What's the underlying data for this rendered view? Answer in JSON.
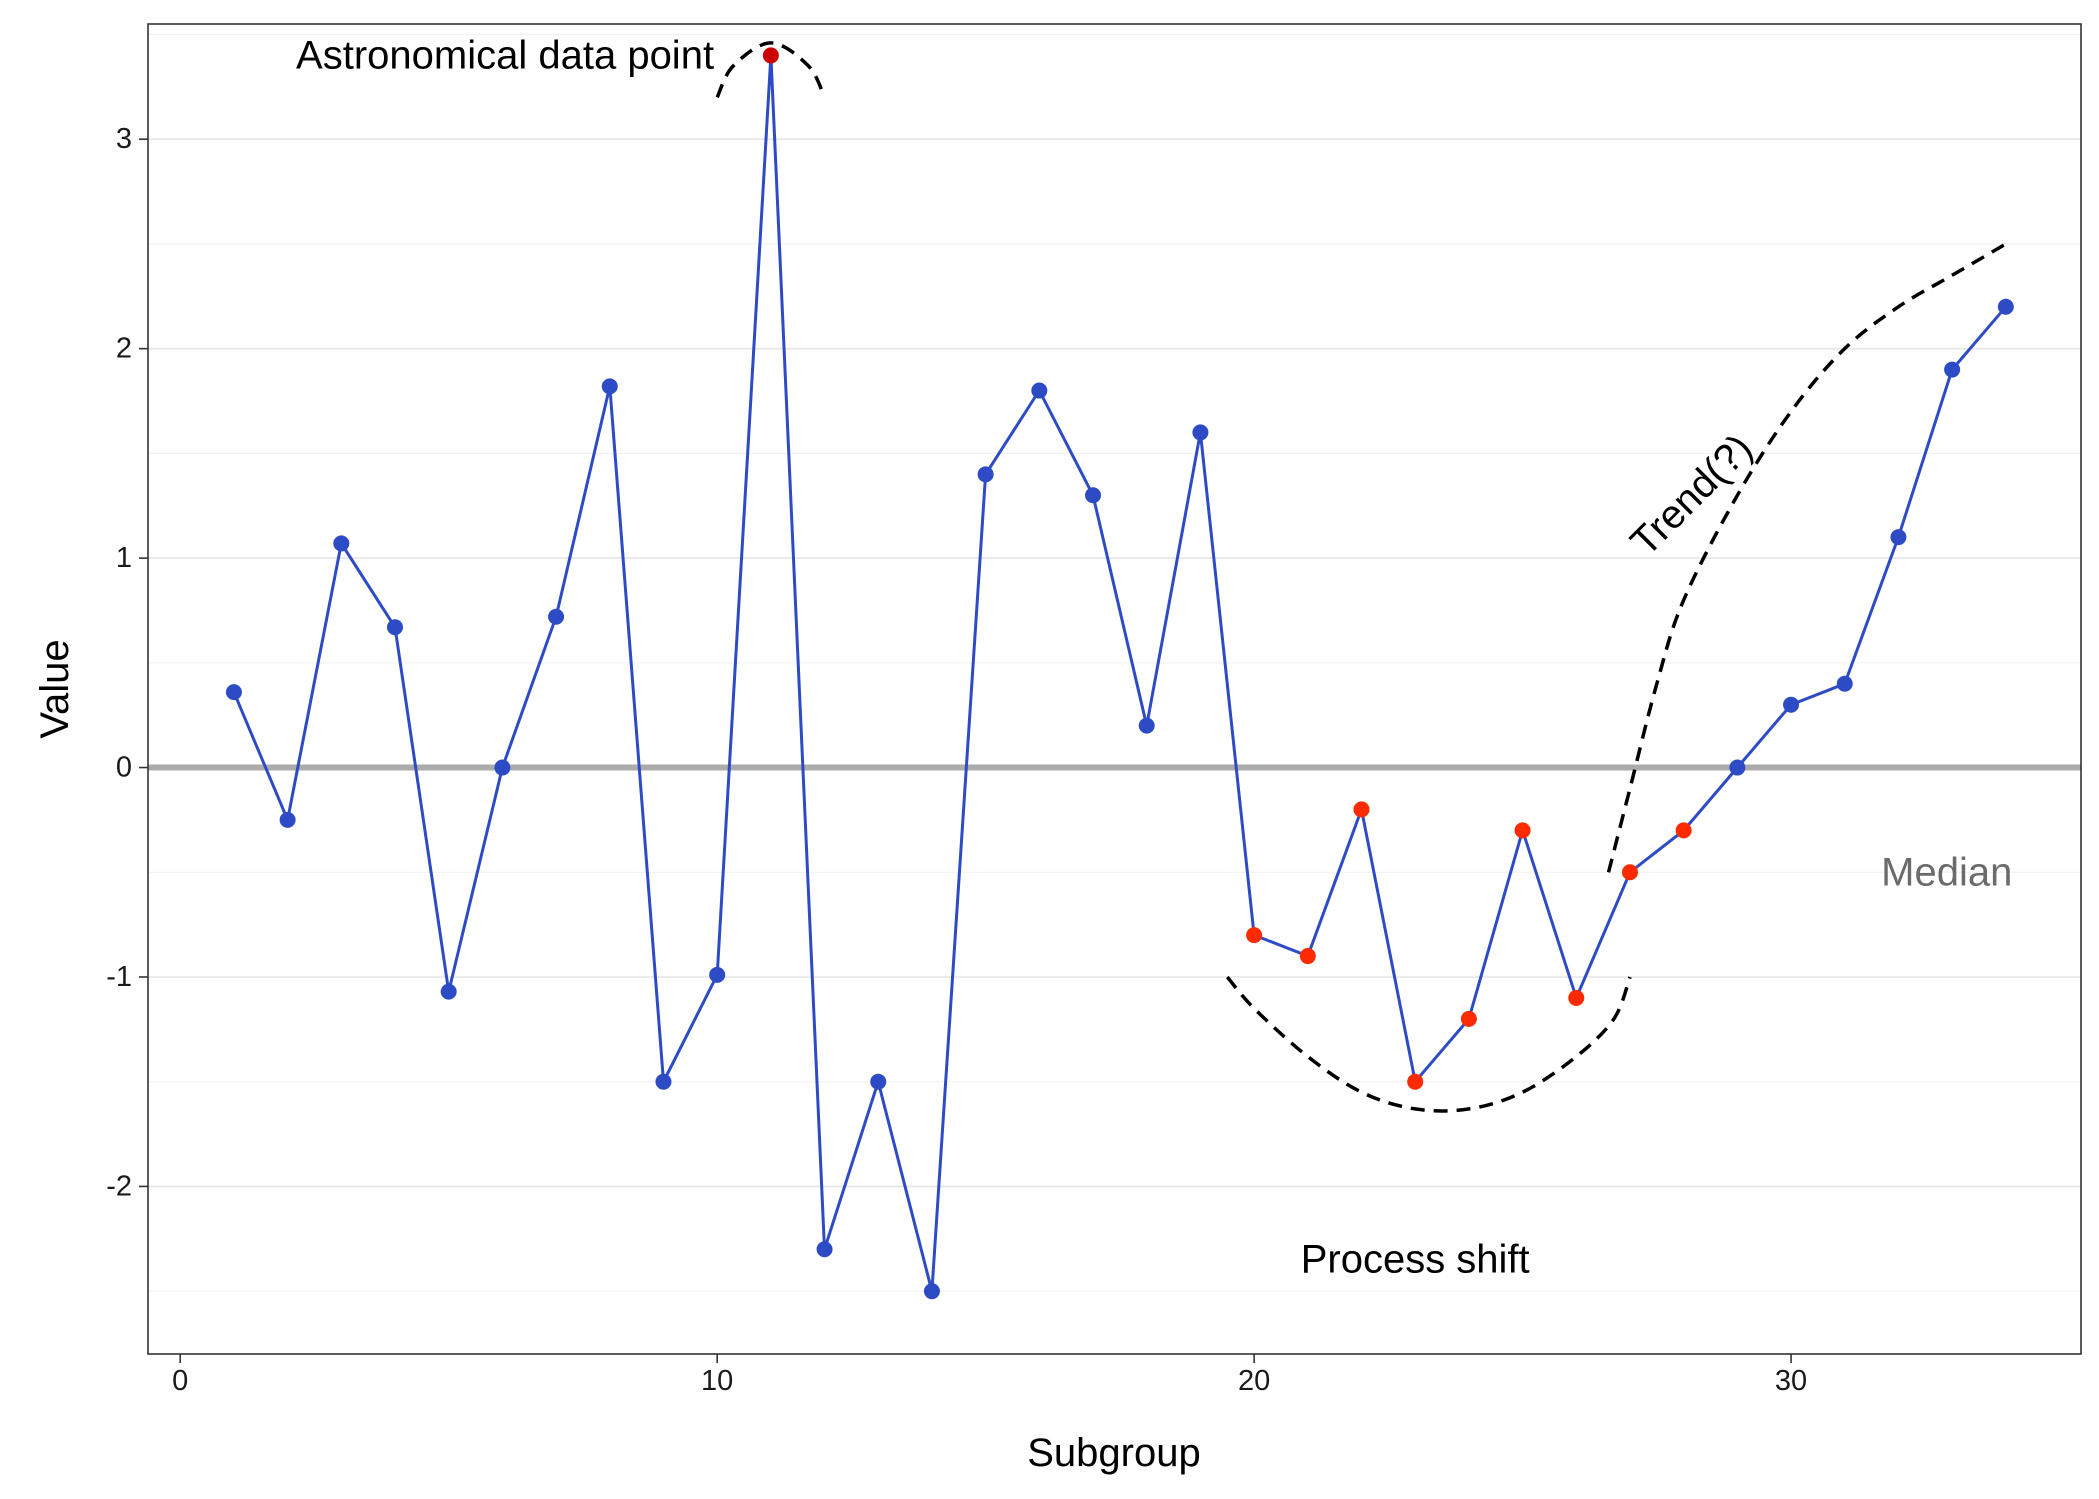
{
  "chart_data": {
    "type": "line",
    "xlabel": "Subgroup",
    "ylabel": "Value",
    "xlim": [
      -0.6,
      35.4
    ],
    "ylim": [
      -2.8,
      3.55
    ],
    "x_ticks": [
      0,
      10,
      20,
      30
    ],
    "y_ticks": [
      -2,
      -1,
      0,
      1,
      2,
      3
    ],
    "grid": "horizontal",
    "colors": {
      "line": "#2E4BC6",
      "point": "#2E4BC6",
      "highlight_point": "#FF2A00",
      "astronomical_point": "#CC0000",
      "median_line": "#ABABAB",
      "grid": "#E5E5E5",
      "dashed_annotation": "#000000"
    },
    "series": [
      {
        "x": [
          1,
          2,
          3,
          4,
          5,
          6,
          7,
          8,
          9,
          10,
          11,
          12,
          13,
          14,
          15,
          16,
          17,
          18,
          19,
          20,
          21,
          22,
          23,
          24,
          25,
          26,
          27,
          28,
          29,
          30,
          31,
          32,
          33,
          34
        ],
        "y": [
          0.36,
          -0.25,
          1.07,
          0.67,
          -1.07,
          0.0,
          0.72,
          1.82,
          -1.5,
          -0.99,
          3.4,
          -2.3,
          -1.5,
          -2.5,
          1.4,
          1.8,
          1.3,
          0.2,
          1.6,
          -0.8,
          -0.9,
          -0.2,
          -1.5,
          -1.2,
          -0.3,
          -1.1,
          -0.5,
          -0.3,
          0.0,
          0.3,
          0.4,
          1.1,
          1.9,
          2.2
        ],
        "point_roles": [
          "normal",
          "normal",
          "normal",
          "normal",
          "normal",
          "normal",
          "normal",
          "normal",
          "normal",
          "normal",
          "astronomical",
          "normal",
          "normal",
          "normal",
          "normal",
          "normal",
          "normal",
          "normal",
          "normal",
          "shift",
          "shift",
          "shift",
          "shift",
          "shift",
          "shift",
          "shift",
          "shift",
          "shift",
          "normal",
          "normal",
          "normal",
          "normal",
          "normal",
          "normal"
        ]
      }
    ],
    "median": 0,
    "annotations": [
      {
        "text": "Astronomical data point",
        "x": 6.05,
        "y": 3.4,
        "anchor": "middle",
        "rotate": 0,
        "kind": "plain"
      },
      {
        "text": "Process shift",
        "x": 23,
        "y": -2.35,
        "anchor": "middle",
        "rotate": 0,
        "kind": "plain"
      },
      {
        "text": "Trend(?)",
        "x": 28.15,
        "y": 1.3,
        "anchor": "middle",
        "rotate": -45,
        "kind": "plain"
      },
      {
        "text": "Median",
        "x": 32.9,
        "y": -0.5,
        "anchor": "middle",
        "rotate": 0,
        "kind": "median"
      }
    ],
    "dashed_curves": [
      {
        "name": "astronomical-arc",
        "points": [
          [
            10,
            3.2
          ],
          [
            10.3,
            3.35
          ],
          [
            11,
            3.46
          ],
          [
            11.7,
            3.35
          ],
          [
            12,
            3.2
          ]
        ]
      },
      {
        "name": "shift-arc",
        "points": [
          [
            19.5,
            -1
          ],
          [
            20,
            -1.15
          ],
          [
            21,
            -1.38
          ],
          [
            22,
            -1.55
          ],
          [
            23,
            -1.63
          ],
          [
            24,
            -1.63
          ],
          [
            25,
            -1.55
          ],
          [
            26,
            -1.38
          ],
          [
            26.7,
            -1.2
          ],
          [
            27,
            -1
          ]
        ]
      },
      {
        "name": "trend-curve",
        "points": [
          [
            26.6,
            -0.5
          ],
          [
            27,
            -0.1
          ],
          [
            27.5,
            0.4
          ],
          [
            28,
            0.8
          ],
          [
            29,
            1.3
          ],
          [
            30,
            1.7
          ],
          [
            31,
            2.0
          ],
          [
            32,
            2.2
          ],
          [
            33,
            2.35
          ],
          [
            34,
            2.5
          ]
        ]
      }
    ]
  }
}
